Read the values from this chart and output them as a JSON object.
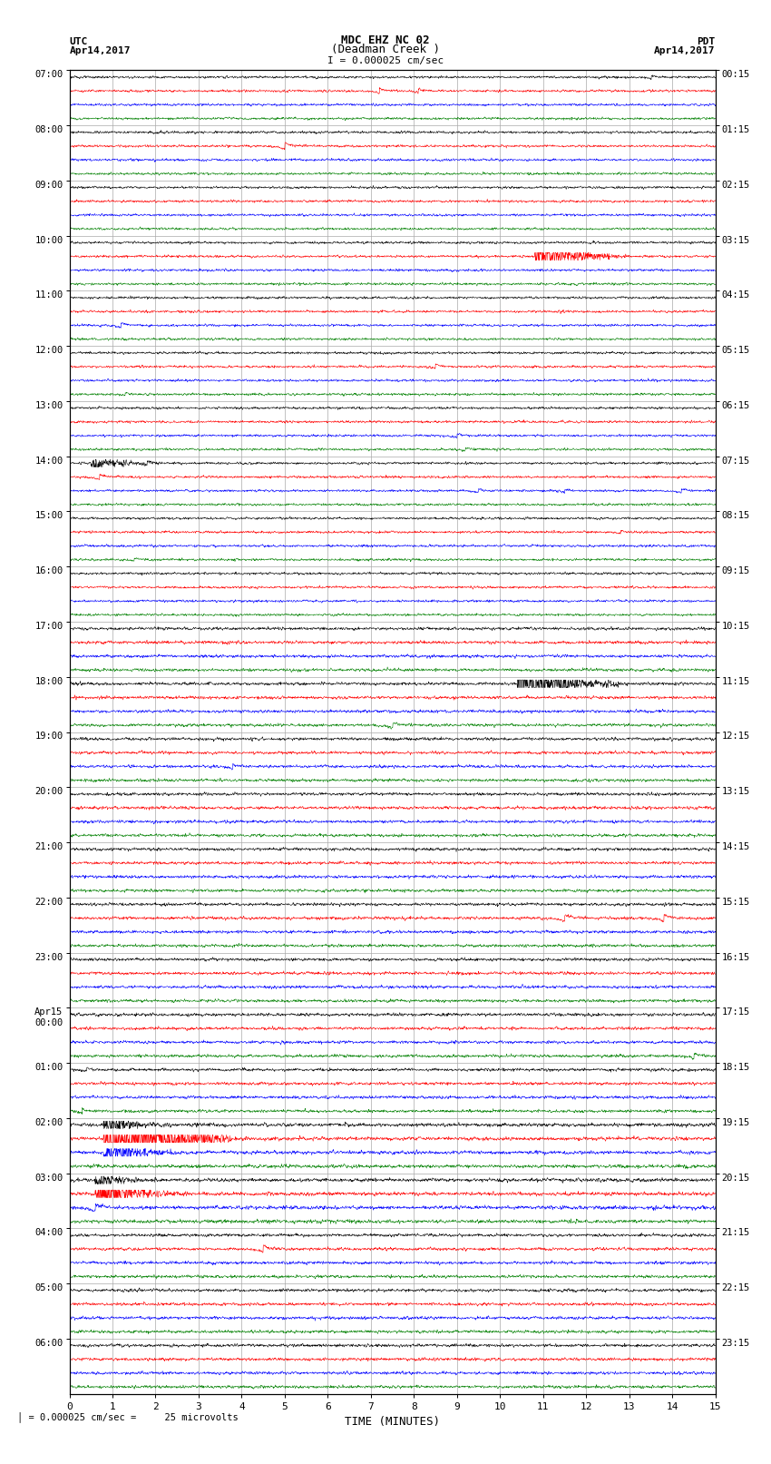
{
  "title_line1": "MDC EHZ NC 02",
  "title_line2": "(Deadman Creek )",
  "title_line3": "I = 0.000025 cm/sec",
  "left_header1": "UTC",
  "left_header2": "Apr14,2017",
  "right_header1": "PDT",
  "right_header2": "Apr14,2017",
  "xlabel": "TIME (MINUTES)",
  "bottom_note": "= 0.000025 cm/sec =     25 microvolts",
  "utc_labels": [
    "07:00",
    "08:00",
    "09:00",
    "10:00",
    "11:00",
    "12:00",
    "13:00",
    "14:00",
    "15:00",
    "16:00",
    "17:00",
    "18:00",
    "19:00",
    "20:00",
    "21:00",
    "22:00",
    "23:00",
    "Apr15\n00:00",
    "01:00",
    "02:00",
    "03:00",
    "04:00",
    "05:00",
    "06:00"
  ],
  "pdt_labels": [
    "00:15",
    "01:15",
    "02:15",
    "03:15",
    "04:15",
    "05:15",
    "06:15",
    "07:15",
    "08:15",
    "09:15",
    "10:15",
    "11:15",
    "12:15",
    "13:15",
    "14:15",
    "15:15",
    "16:15",
    "17:15",
    "18:15",
    "19:15",
    "20:15",
    "21:15",
    "22:15",
    "23:15"
  ],
  "num_hours": 24,
  "traces_per_hour": 4,
  "minutes": 15,
  "colors": [
    "black",
    "red",
    "blue",
    "green"
  ],
  "bg_color": "#ffffff",
  "grid_color": "#aaaaaa",
  "trace_amplitude": 0.28,
  "noise_base": 0.04,
  "n_pts": 2000
}
